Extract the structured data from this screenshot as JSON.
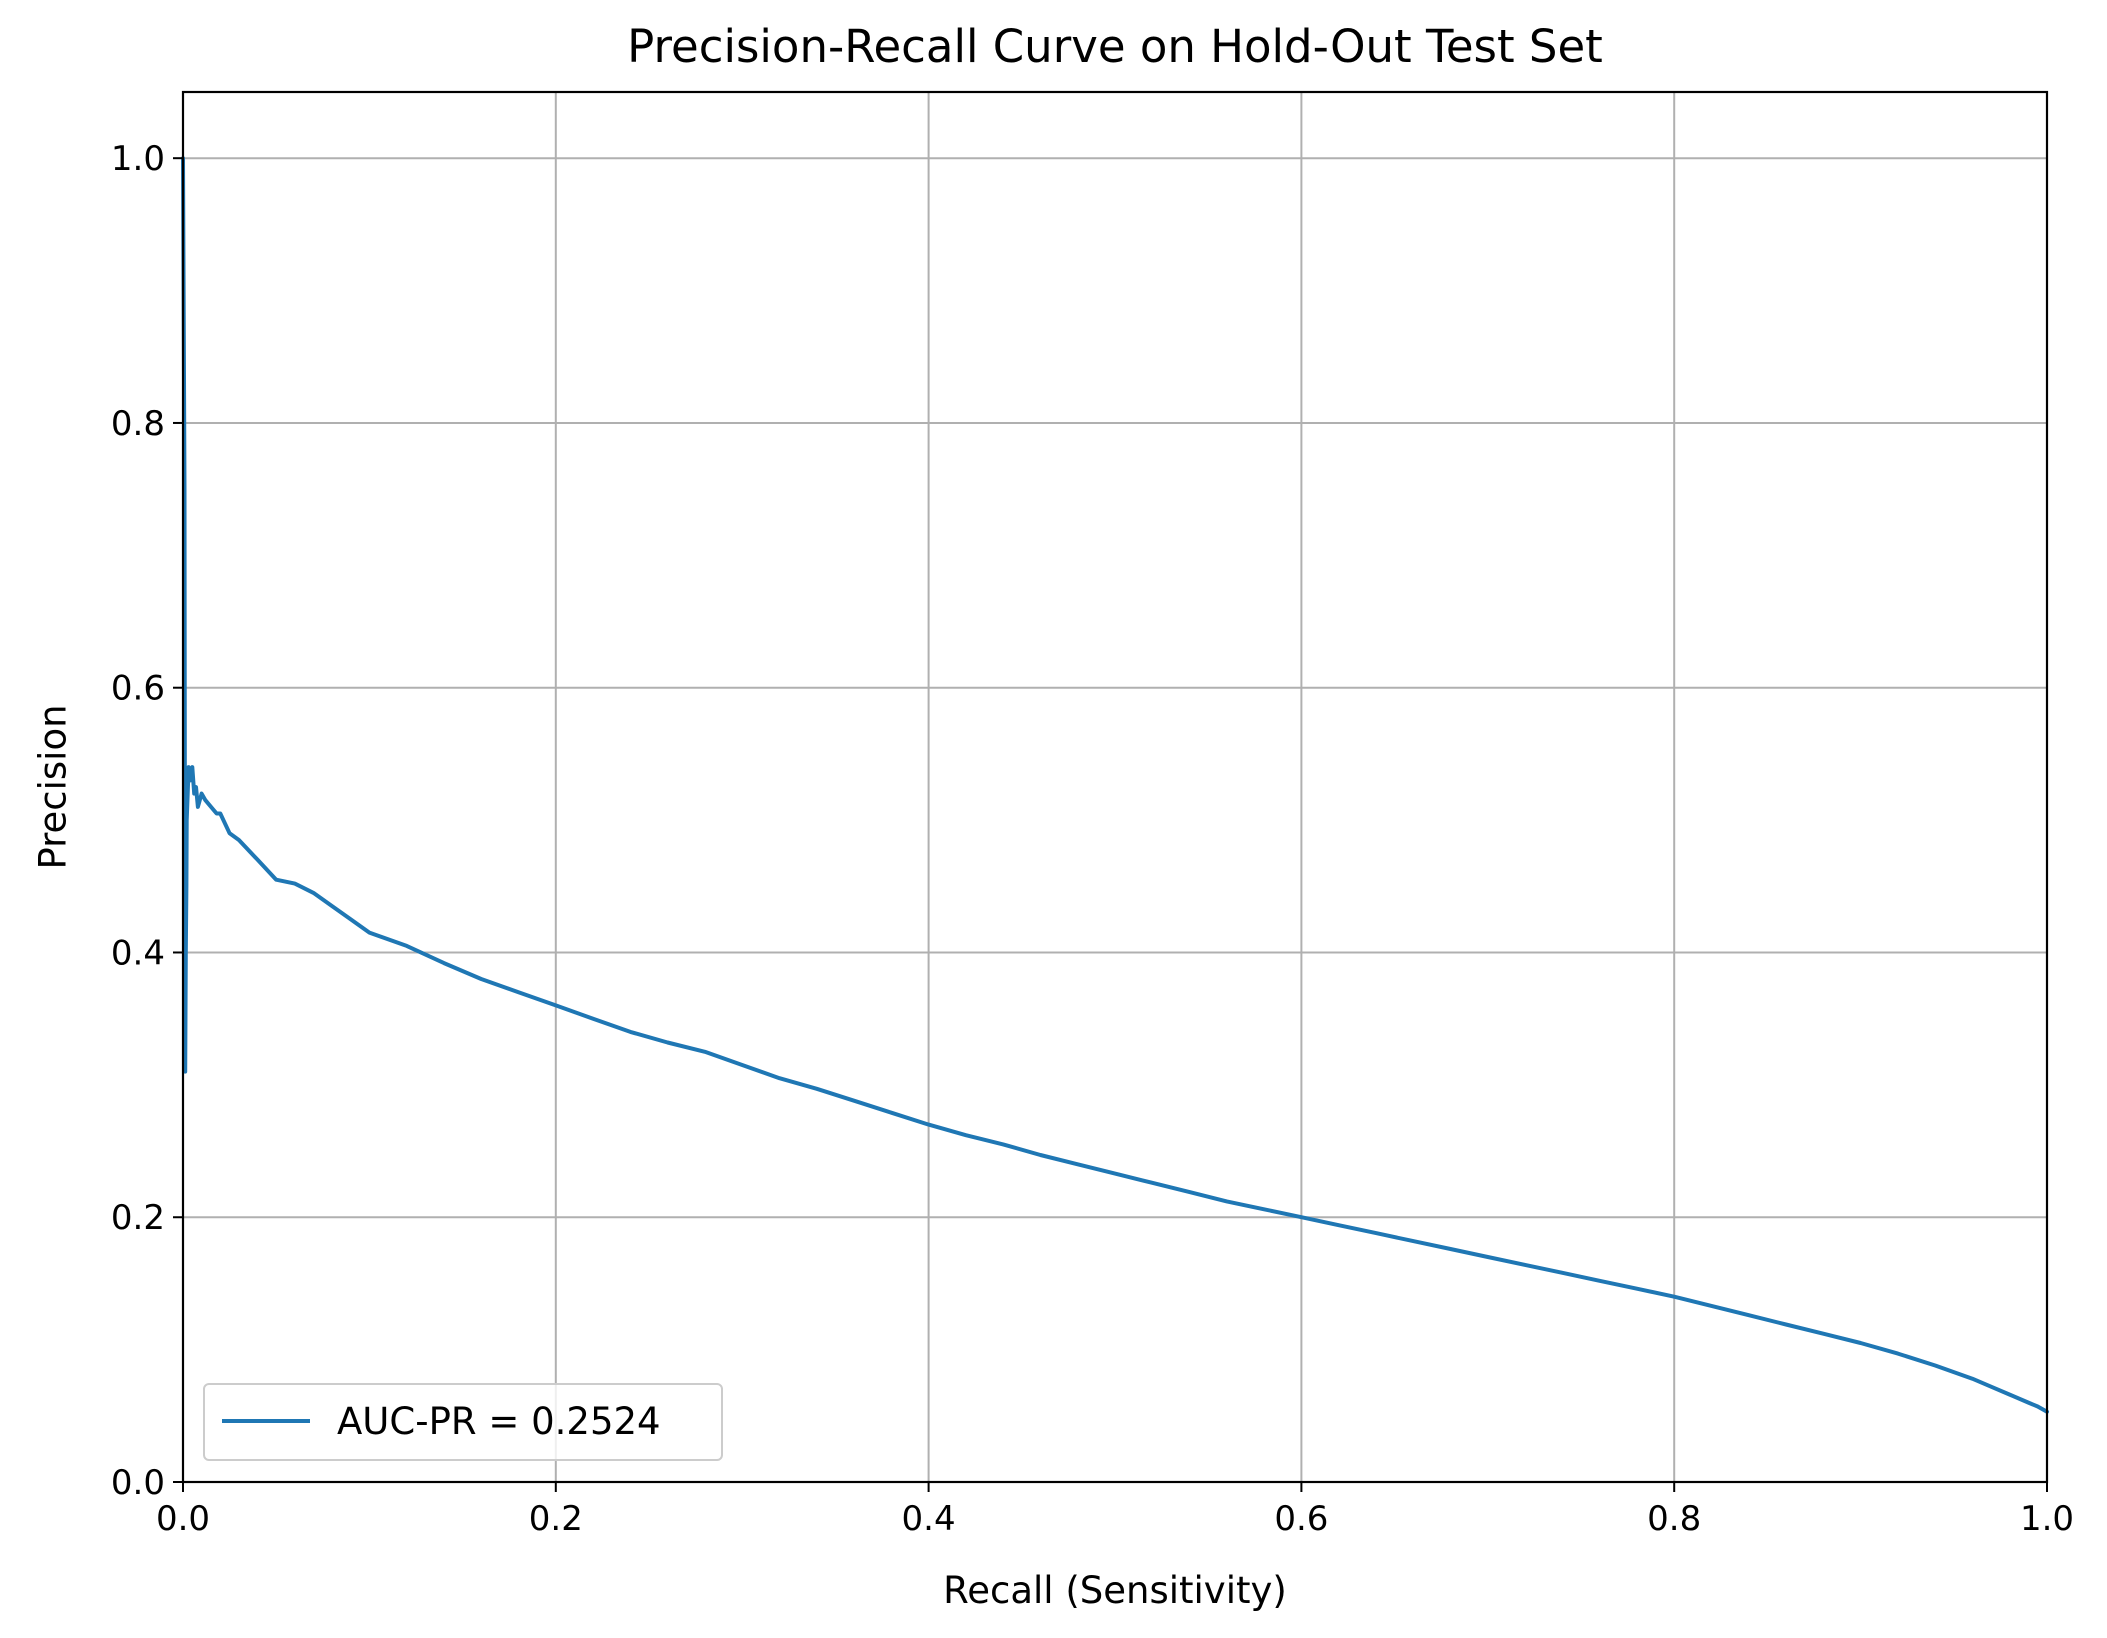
{
  "chart_data": {
    "type": "line",
    "title": "Precision-Recall Curve on Hold-Out Test Set",
    "xlabel": "Recall (Sensitivity)",
    "ylabel": "Precision",
    "xlim": [
      0.0,
      1.0
    ],
    "ylim": [
      0.0,
      1.05
    ],
    "xticks": [
      "0.0",
      "0.2",
      "0.4",
      "0.6",
      "0.8",
      "1.0"
    ],
    "yticks": [
      "0.0",
      "0.2",
      "0.4",
      "0.6",
      "0.8",
      "1.0"
    ],
    "grid": true,
    "legend_position": "lower-left",
    "series": [
      {
        "name": "AUC-PR = 0.2524",
        "color": "#1f77b4",
        "x": [
          0.0,
          0.0008,
          0.0012,
          0.0015,
          0.0018,
          0.002,
          0.0025,
          0.003,
          0.004,
          0.005,
          0.006,
          0.007,
          0.008,
          0.01,
          0.012,
          0.015,
          0.018,
          0.02,
          0.025,
          0.03,
          0.04,
          0.05,
          0.06,
          0.07,
          0.08,
          0.09,
          0.1,
          0.12,
          0.14,
          0.16,
          0.18,
          0.2,
          0.22,
          0.24,
          0.26,
          0.28,
          0.3,
          0.32,
          0.34,
          0.36,
          0.38,
          0.4,
          0.42,
          0.44,
          0.46,
          0.48,
          0.5,
          0.52,
          0.54,
          0.56,
          0.58,
          0.6,
          0.62,
          0.64,
          0.66,
          0.68,
          0.7,
          0.72,
          0.74,
          0.76,
          0.78,
          0.8,
          0.82,
          0.84,
          0.86,
          0.88,
          0.9,
          0.92,
          0.94,
          0.96,
          0.97,
          0.98,
          0.99,
          0.995,
          1.0
        ],
        "y": [
          1.0,
          0.75,
          0.31,
          0.4,
          0.45,
          0.5,
          0.52,
          0.54,
          0.53,
          0.54,
          0.52,
          0.525,
          0.51,
          0.52,
          0.515,
          0.51,
          0.505,
          0.505,
          0.49,
          0.485,
          0.47,
          0.455,
          0.452,
          0.445,
          0.435,
          0.425,
          0.415,
          0.405,
          0.392,
          0.38,
          0.37,
          0.36,
          0.35,
          0.34,
          0.332,
          0.325,
          0.315,
          0.305,
          0.297,
          0.288,
          0.279,
          0.27,
          0.262,
          0.255,
          0.247,
          0.24,
          0.233,
          0.226,
          0.219,
          0.212,
          0.206,
          0.2,
          0.194,
          0.188,
          0.182,
          0.176,
          0.17,
          0.164,
          0.158,
          0.152,
          0.146,
          0.14,
          0.133,
          0.126,
          0.119,
          0.112,
          0.105,
          0.097,
          0.088,
          0.078,
          0.072,
          0.066,
          0.06,
          0.057,
          0.053
        ]
      }
    ]
  }
}
